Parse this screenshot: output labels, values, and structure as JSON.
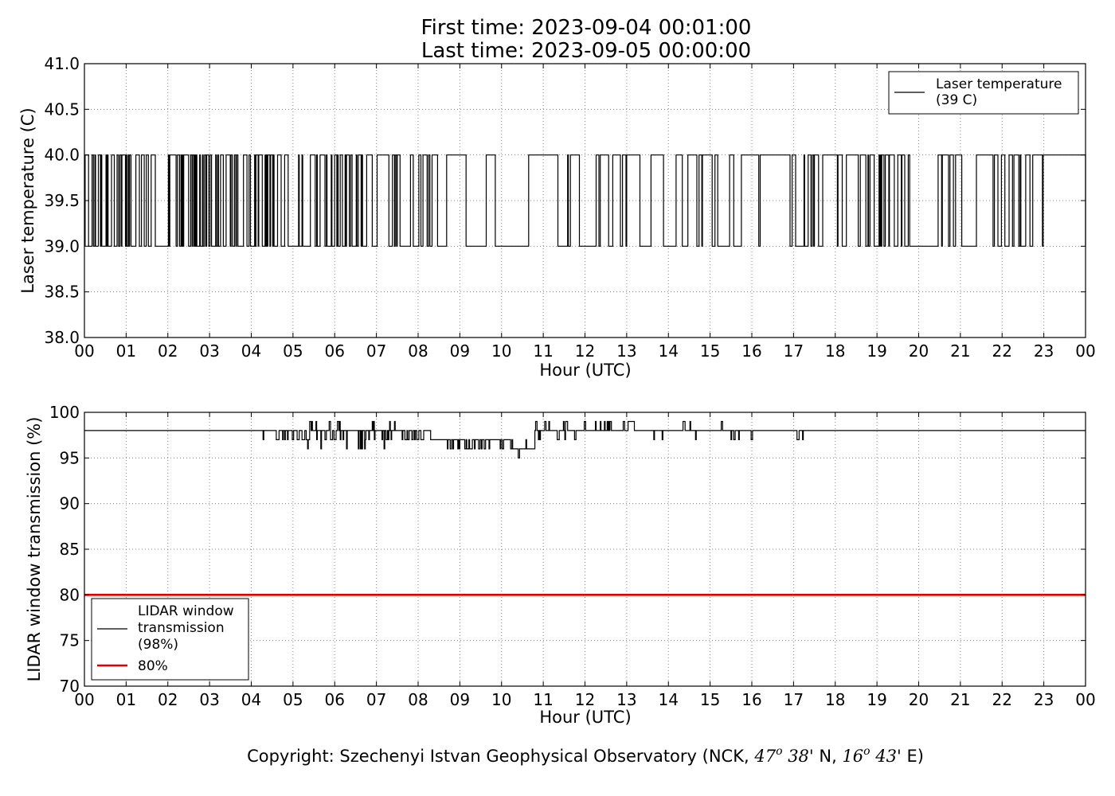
{
  "header": {
    "first_time": "First time: 2023-09-04 00:01:00",
    "last_time": "Last time: 2023-09-05 00:00:00"
  },
  "footer": {
    "copyright_prefix": "Copyright: Szechenyi Istvan Geophysical Observatory (NCK, ",
    "lat_deg": "47",
    "lat_deg_mark": "o",
    "lat_min": " 38'",
    "lat_hem": " N, ",
    "lon_deg": "16",
    "lon_deg_mark": "o",
    "lon_min": " 43'",
    "lon_hem": " E)"
  },
  "colors": {
    "series": "#000000",
    "threshold": "#e00000",
    "grid": "#888888"
  },
  "chart_data": [
    {
      "type": "line",
      "title": "",
      "xlabel": "Hour (UTC)",
      "ylabel": "Laser temperature (C)",
      "xlim": [
        0,
        24
      ],
      "ylim": [
        38.0,
        41.0
      ],
      "xticks": [
        "00",
        "01",
        "02",
        "03",
        "04",
        "05",
        "06",
        "07",
        "08",
        "09",
        "10",
        "11",
        "12",
        "13",
        "14",
        "15",
        "16",
        "17",
        "18",
        "19",
        "20",
        "21",
        "22",
        "23",
        "00"
      ],
      "yticks": [
        "38.0",
        "38.5",
        "39.0",
        "39.5",
        "40.0",
        "40.5",
        "41.0"
      ],
      "grid": true,
      "legend_position": "top-right",
      "series": [
        {
          "name": "Laser temperature\n(39 C)",
          "legend_lines": [
            "Laser temperature",
            "(39 C)"
          ],
          "color": "#000000",
          "values_range": [
            39.0,
            40.0
          ],
          "segments": [
            {
              "x0": 0.0,
              "x1": 1.72,
              "density": 0.8
            },
            {
              "x0": 1.72,
              "x1": 1.98,
              "density": 0.0
            },
            {
              "x0": 1.98,
              "x1": 4.7,
              "density": 0.8
            },
            {
              "x0": 4.7,
              "x1": 5.65,
              "density": 0.45
            },
            {
              "x0": 5.65,
              "x1": 7.6,
              "density": 0.5
            },
            {
              "x0": 7.6,
              "x1": 8.9,
              "density": 0.25
            },
            {
              "x0": 8.9,
              "x1": 14.6,
              "density": 0.12
            },
            {
              "x0": 14.6,
              "x1": 15.6,
              "density": 0.3
            },
            {
              "x0": 15.6,
              "x1": 17.0,
              "density": 0.1
            },
            {
              "x0": 17.0,
              "x1": 18.6,
              "density": 0.35
            },
            {
              "x0": 18.6,
              "x1": 19.8,
              "density": 0.5
            },
            {
              "x0": 19.8,
              "x1": 20.3,
              "density": 0.0
            },
            {
              "x0": 20.3,
              "x1": 21.6,
              "density": 0.08
            },
            {
              "x0": 21.6,
              "x1": 23.0,
              "density": 0.35
            },
            {
              "x0": 23.0,
              "x1": 24.0,
              "density": 0.03
            }
          ]
        }
      ]
    },
    {
      "type": "line",
      "title": "",
      "xlabel": "Hour (UTC)",
      "ylabel": "LIDAR window transmission (%)",
      "xlim": [
        0,
        24
      ],
      "ylim": [
        70,
        100
      ],
      "xticks": [
        "00",
        "01",
        "02",
        "03",
        "04",
        "05",
        "06",
        "07",
        "08",
        "09",
        "10",
        "11",
        "12",
        "13",
        "14",
        "15",
        "16",
        "17",
        "18",
        "19",
        "20",
        "21",
        "22",
        "23",
        "00"
      ],
      "yticks": [
        "70",
        "75",
        "80",
        "85",
        "90",
        "95",
        "100"
      ],
      "grid": true,
      "legend_position": "bottom-left",
      "series": [
        {
          "name": "LIDAR window transmission (98%)",
          "legend_lines": [
            "LIDAR window",
            "transmission",
            "(98%)"
          ],
          "color": "#000000",
          "baseline": 98,
          "segments": [
            {
              "x0": 0.0,
              "x1": 4.1,
              "base": 98,
              "lo": 98,
              "hi": 98,
              "density": 0.0
            },
            {
              "x0": 4.1,
              "x1": 5.1,
              "base": 98,
              "lo": 97,
              "hi": 98,
              "density": 0.2
            },
            {
              "x0": 5.1,
              "x1": 7.5,
              "base": 98,
              "lo": 96,
              "hi": 99,
              "density": 0.45
            },
            {
              "x0": 7.5,
              "x1": 8.3,
              "base": 98,
              "lo": 97,
              "hi": 98,
              "density": 0.35
            },
            {
              "x0": 8.3,
              "x1": 8.7,
              "base": 97,
              "lo": 97,
              "hi": 97,
              "density": 0.0
            },
            {
              "x0": 8.7,
              "x1": 10.3,
              "base": 97,
              "lo": 96,
              "hi": 97,
              "density": 0.45
            },
            {
              "x0": 10.3,
              "x1": 10.8,
              "base": 96,
              "lo": 95,
              "hi": 97,
              "density": 0.4
            },
            {
              "x0": 10.8,
              "x1": 12.9,
              "base": 98,
              "lo": 97,
              "hi": 99,
              "density": 0.4
            },
            {
              "x0": 12.9,
              "x1": 15.3,
              "base": 98,
              "lo": 97,
              "hi": 99,
              "density": 0.2
            },
            {
              "x0": 15.3,
              "x1": 17.6,
              "base": 98,
              "lo": 97,
              "hi": 98,
              "density": 0.1
            },
            {
              "x0": 17.6,
              "x1": 24.0,
              "base": 98,
              "lo": 98,
              "hi": 98,
              "density": 0.0
            }
          ]
        },
        {
          "name": "80%",
          "legend_lines": [
            "80%"
          ],
          "color": "#e00000",
          "values": [
            80,
            80
          ],
          "x": [
            0,
            24
          ]
        }
      ]
    }
  ]
}
